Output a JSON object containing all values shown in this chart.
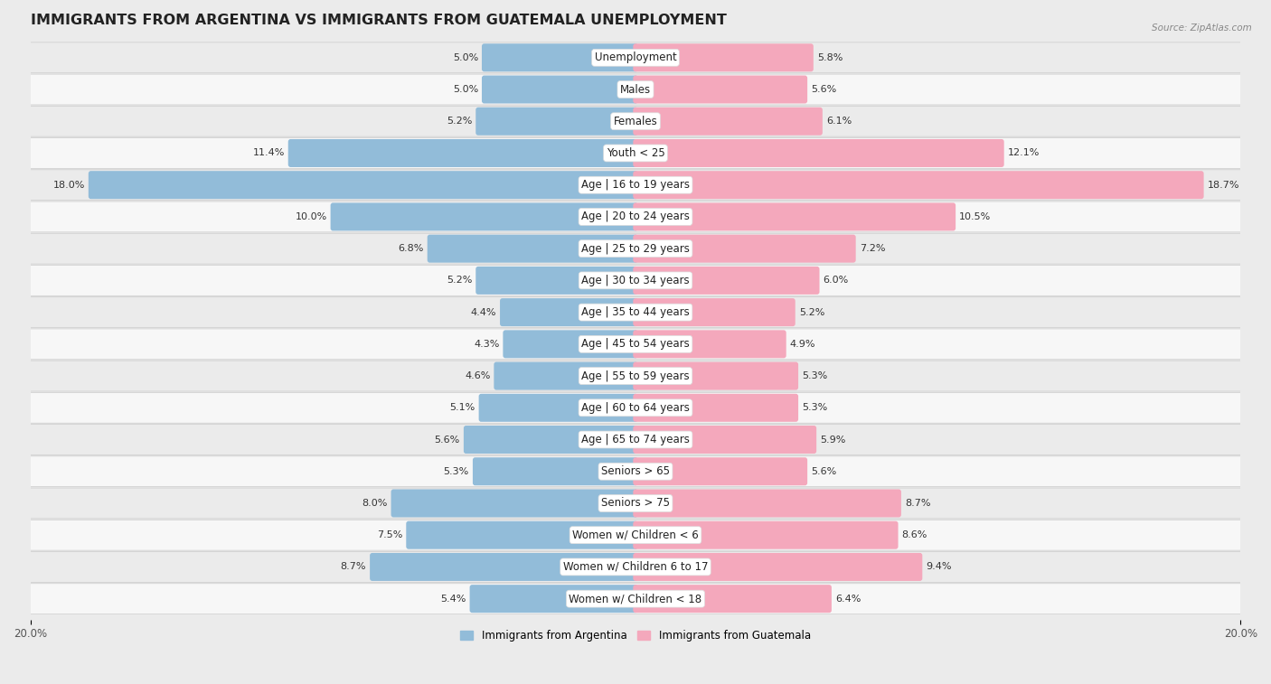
{
  "title": "IMMIGRANTS FROM ARGENTINA VS IMMIGRANTS FROM GUATEMALA UNEMPLOYMENT",
  "source": "Source: ZipAtlas.com",
  "categories": [
    "Unemployment",
    "Males",
    "Females",
    "Youth < 25",
    "Age | 16 to 19 years",
    "Age | 20 to 24 years",
    "Age | 25 to 29 years",
    "Age | 30 to 34 years",
    "Age | 35 to 44 years",
    "Age | 45 to 54 years",
    "Age | 55 to 59 years",
    "Age | 60 to 64 years",
    "Age | 65 to 74 years",
    "Seniors > 65",
    "Seniors > 75",
    "Women w/ Children < 6",
    "Women w/ Children 6 to 17",
    "Women w/ Children < 18"
  ],
  "argentina_values": [
    5.0,
    5.0,
    5.2,
    11.4,
    18.0,
    10.0,
    6.8,
    5.2,
    4.4,
    4.3,
    4.6,
    5.1,
    5.6,
    5.3,
    8.0,
    7.5,
    8.7,
    5.4
  ],
  "guatemala_values": [
    5.8,
    5.6,
    6.1,
    12.1,
    18.7,
    10.5,
    7.2,
    6.0,
    5.2,
    4.9,
    5.3,
    5.3,
    5.9,
    5.6,
    8.7,
    8.6,
    9.4,
    6.4
  ],
  "argentina_color": "#92bcd9",
  "guatemala_color": "#f4a8bc",
  "row_color_even": "#ebebeb",
  "row_color_odd": "#f7f7f7",
  "axis_limit": 20.0,
  "legend_argentina": "Immigrants from Argentina",
  "legend_guatemala": "Immigrants from Guatemala",
  "title_fontsize": 11.5,
  "label_fontsize": 8.5,
  "value_fontsize": 8.0,
  "tick_fontsize": 8.5
}
